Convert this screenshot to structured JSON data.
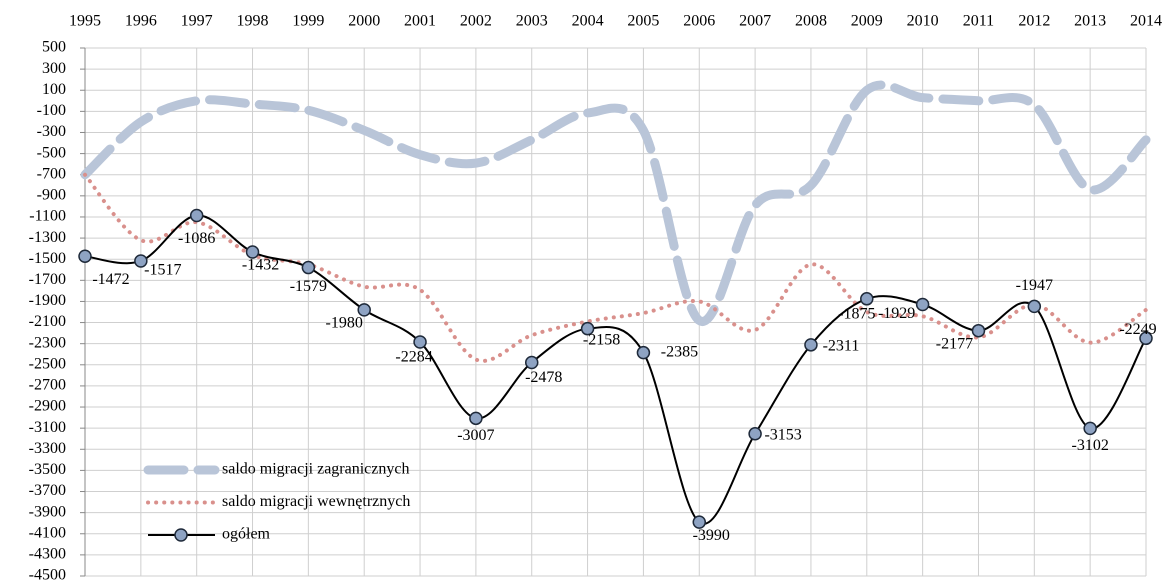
{
  "chart_data": {
    "type": "line",
    "x": [
      "1995",
      "1996",
      "1997",
      "1998",
      "1999",
      "2000",
      "2001",
      "2002",
      "2003",
      "2004",
      "2005",
      "2006",
      "2007",
      "2008",
      "2009",
      "2010",
      "2011",
      "2012",
      "2013",
      "2014"
    ],
    "ylim": [
      -4500,
      500
    ],
    "yticks": [
      500,
      300,
      100,
      -100,
      -300,
      -500,
      -700,
      -900,
      -1100,
      -1300,
      -1500,
      -1700,
      -1900,
      -2100,
      -2300,
      -2500,
      -2700,
      -2900,
      -3100,
      -3300,
      -3500,
      -3700,
      -3900,
      -4100,
      -4300,
      -4500
    ],
    "grid": true,
    "legend": "bottom-left",
    "series": [
      {
        "name": "saldo migracji zagranicznych",
        "color": "#b9c5d8",
        "style": "dashed",
        "values": [
          -700,
          -200,
          0,
          -30,
          -90,
          -280,
          -510,
          -590,
          -370,
          -115,
          -280,
          -2080,
          -990,
          -800,
          100,
          30,
          0,
          -40,
          -840,
          -370
        ]
      },
      {
        "name": "saldo migracji wewnętrznych",
        "color": "#d9908c",
        "style": "dotted",
        "values": [
          -700,
          -1320,
          -1150,
          -1460,
          -1550,
          -1760,
          -1790,
          -2450,
          -2220,
          -2090,
          -2010,
          -1900,
          -2170,
          -1550,
          -2000,
          -2040,
          -2240,
          -1930,
          -2290,
          -1980
        ]
      },
      {
        "name": "ogółem",
        "color": "#000000",
        "style": "solid",
        "markers": true,
        "data_labels": true,
        "values": [
          -1472,
          -1517,
          -1086,
          -1432,
          -1579,
          -1980,
          -2284,
          -3007,
          -2478,
          -2158,
          -2385,
          -3990,
          -3153,
          -2311,
          -1875,
          -1929,
          -2177,
          -1947,
          -3102,
          -2249
        ]
      }
    ]
  }
}
